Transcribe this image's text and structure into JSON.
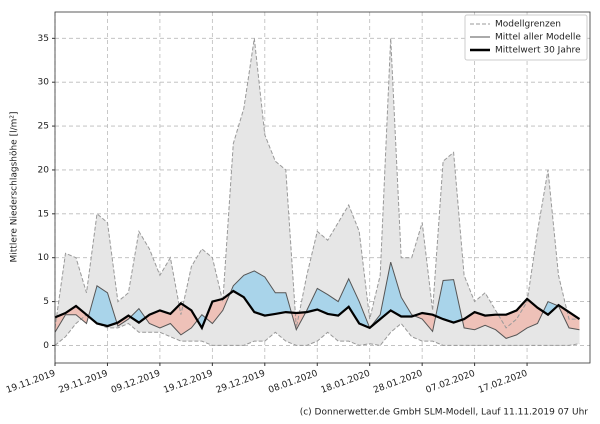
{
  "chart_data": {
    "type": "line",
    "ylabel": "Mittlere Niederschlagshöhe [l/m²]",
    "footer": "(c) Donnerwetter.de GmbH SLM-Modell, Lauf 11.11.2019 07 Uhr",
    "x": [
      "19.11.2019",
      "21.11.2019",
      "23.11.2019",
      "25.11.2019",
      "27.11.2019",
      "29.11.2019",
      "01.12.2019",
      "03.12.2019",
      "05.12.2019",
      "07.12.2019",
      "09.12.2019",
      "11.12.2019",
      "13.12.2019",
      "15.12.2019",
      "17.12.2019",
      "19.12.2019",
      "21.12.2019",
      "23.12.2019",
      "25.12.2019",
      "27.12.2019",
      "29.12.2019",
      "31.12.2019",
      "02.01.2020",
      "04.01.2020",
      "06.01.2020",
      "08.01.2020",
      "10.01.2020",
      "12.01.2020",
      "14.01.2020",
      "16.01.2020",
      "18.01.2020",
      "20.01.2020",
      "22.01.2020",
      "24.01.2020",
      "26.01.2020",
      "28.01.2020",
      "30.01.2020",
      "01.02.2020",
      "03.02.2020",
      "05.02.2020",
      "07.02.2020",
      "09.02.2020",
      "11.02.2020",
      "13.02.2020",
      "15.02.2020",
      "17.02.2020",
      "19.02.2020",
      "21.02.2020",
      "23.02.2020",
      "25.02.2020",
      "27.02.2020"
    ],
    "xlim": [
      "19.11.2019",
      "29.02.2020"
    ],
    "xticks": [
      "19.11.2019",
      "29.11.2019",
      "09.12.2019",
      "19.12.2019",
      "29.12.2019",
      "08.01.2020",
      "18.01.2020",
      "28.01.2020",
      "07.02.2020",
      "17.02.2020"
    ],
    "ylim": [
      -2,
      38
    ],
    "yticks": [
      0,
      5,
      10,
      15,
      20,
      25,
      30,
      35
    ],
    "grid": true,
    "legend": "upper right",
    "bounds": {
      "name": "Modellgrenzen",
      "color": "#999999",
      "fill": "#e6e6e6",
      "upper": [
        2,
        10.5,
        10,
        6,
        15,
        14,
        5,
        6,
        13,
        11,
        8,
        10,
        3.5,
        9,
        11,
        10,
        5,
        23,
        27,
        35,
        24,
        21,
        20,
        2,
        8,
        13,
        12,
        14,
        16,
        13,
        3,
        8,
        35,
        10,
        10,
        14,
        4,
        21,
        22,
        8,
        5,
        6,
        4,
        2,
        3,
        5,
        13,
        20,
        8,
        3,
        3
      ],
      "lower": [
        0,
        1,
        2.5,
        3.5,
        2.5,
        2,
        2,
        2.5,
        1.5,
        1.5,
        1.5,
        1,
        0.5,
        0.5,
        0.5,
        0,
        0,
        0,
        0,
        0.5,
        0.5,
        1.5,
        0.5,
        0,
        0,
        0.5,
        1.5,
        0.5,
        0.5,
        0,
        0.2,
        0,
        1.5,
        2.5,
        1,
        0.5,
        0.5,
        0,
        0,
        0,
        0,
        0,
        0,
        0,
        0,
        0,
        0,
        0,
        0,
        0,
        0.2
      ]
    },
    "series": [
      {
        "name": "Mittel aller Modelle",
        "color": "#555555",
        "values": [
          1.5,
          3.5,
          3.5,
          2.5,
          6.8,
          6,
          2.2,
          3,
          4.2,
          2.5,
          2,
          2.5,
          1.2,
          2,
          3.5,
          2.5,
          4,
          6.8,
          8,
          8.5,
          7.8,
          6,
          6,
          1.8,
          4,
          6.5,
          5.8,
          5,
          7.6,
          5,
          2,
          3.5,
          9.5,
          5.5,
          3.5,
          3,
          1.6,
          7.4,
          7.5,
          2,
          1.8,
          2.3,
          1.8,
          0.8,
          1.2,
          2,
          2.5,
          5,
          4.5,
          2,
          1.8
        ]
      },
      {
        "name": "Mittelwert 30 Jahre",
        "color": "#000000",
        "values": [
          3.2,
          3.7,
          4.5,
          3.5,
          2.5,
          2.2,
          2.6,
          3.4,
          2.6,
          3.5,
          4,
          3.6,
          4.8,
          4,
          2,
          5,
          5.3,
          6.2,
          5.5,
          3.8,
          3.4,
          3.6,
          3.8,
          3.7,
          3.8,
          4.1,
          3.6,
          3.4,
          4.4,
          2.5,
          2,
          3,
          4,
          3.3,
          3.3,
          3.7,
          3.5,
          3,
          2.6,
          3,
          3.8,
          3.4,
          3.5,
          3.5,
          4,
          5.3,
          4.3,
          3.5,
          4.6,
          3.8,
          3
        ]
      }
    ],
    "above_color": "#a9d4ea",
    "below_color": "#eec1b8"
  }
}
